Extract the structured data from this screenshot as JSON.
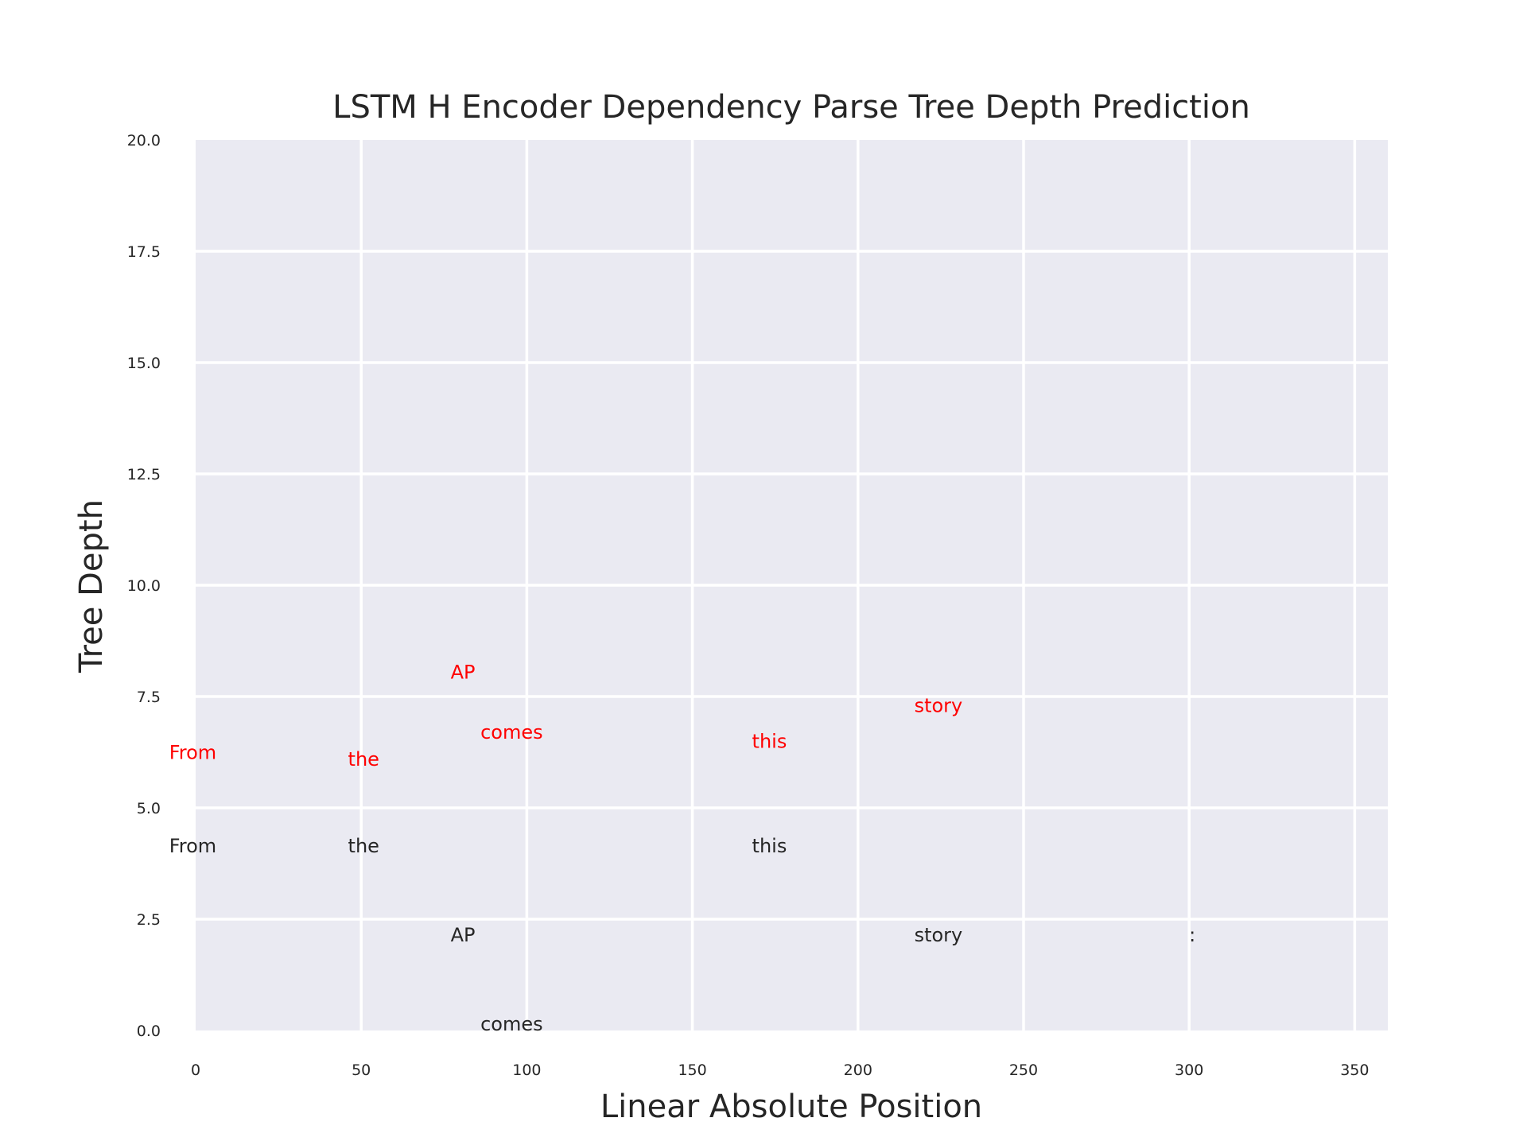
{
  "chart_data": {
    "type": "scatter",
    "title": "LSTM H Encoder Dependency Parse Tree Depth Prediction",
    "xlabel": "Linear Absolute Position",
    "ylabel": "Tree Depth",
    "xlim": [
      0,
      360
    ],
    "ylim": [
      0,
      20
    ],
    "xticks": [
      "0",
      "50",
      "100",
      "150",
      "200",
      "250",
      "300",
      "350"
    ],
    "xtick_values": [
      0,
      50,
      100,
      150,
      200,
      250,
      300,
      350
    ],
    "yticks": [
      "0.0",
      "2.5",
      "5.0",
      "7.5",
      "10.0",
      "12.5",
      "15.0",
      "17.5",
      "20.0"
    ],
    "ytick_values": [
      0,
      2.5,
      5,
      7.5,
      10,
      12.5,
      15,
      17.5,
      20
    ],
    "grid": true,
    "colors": {
      "background": "#eaeaf2",
      "grid": "#ffffff",
      "gold": "#262626",
      "predicted": "#ff0000"
    },
    "series": [
      {
        "points": [
          {
            "word": "From",
            "x": -8,
            "y": 4
          },
          {
            "word": "the",
            "x": 46,
            "y": 4
          },
          {
            "word": "AP",
            "x": 77,
            "y": 2
          },
          {
            "word": "comes",
            "x": 86,
            "y": 0
          },
          {
            "word": "this",
            "x": 168,
            "y": 4
          },
          {
            "word": "story",
            "x": 217,
            "y": 2
          },
          {
            "word": ":",
            "x": 300,
            "y": 2
          }
        ]
      },
      {
        "points": [
          {
            "word": "From",
            "x": -8,
            "y": 6.1
          },
          {
            "word": "the",
            "x": 46,
            "y": 5.95
          },
          {
            "word": "AP",
            "x": 77,
            "y": 7.9
          },
          {
            "word": "comes",
            "x": 86,
            "y": 6.55
          },
          {
            "word": "this",
            "x": 168,
            "y": 6.35
          },
          {
            "word": "story",
            "x": 217,
            "y": 7.15
          }
        ]
      }
    ]
  }
}
